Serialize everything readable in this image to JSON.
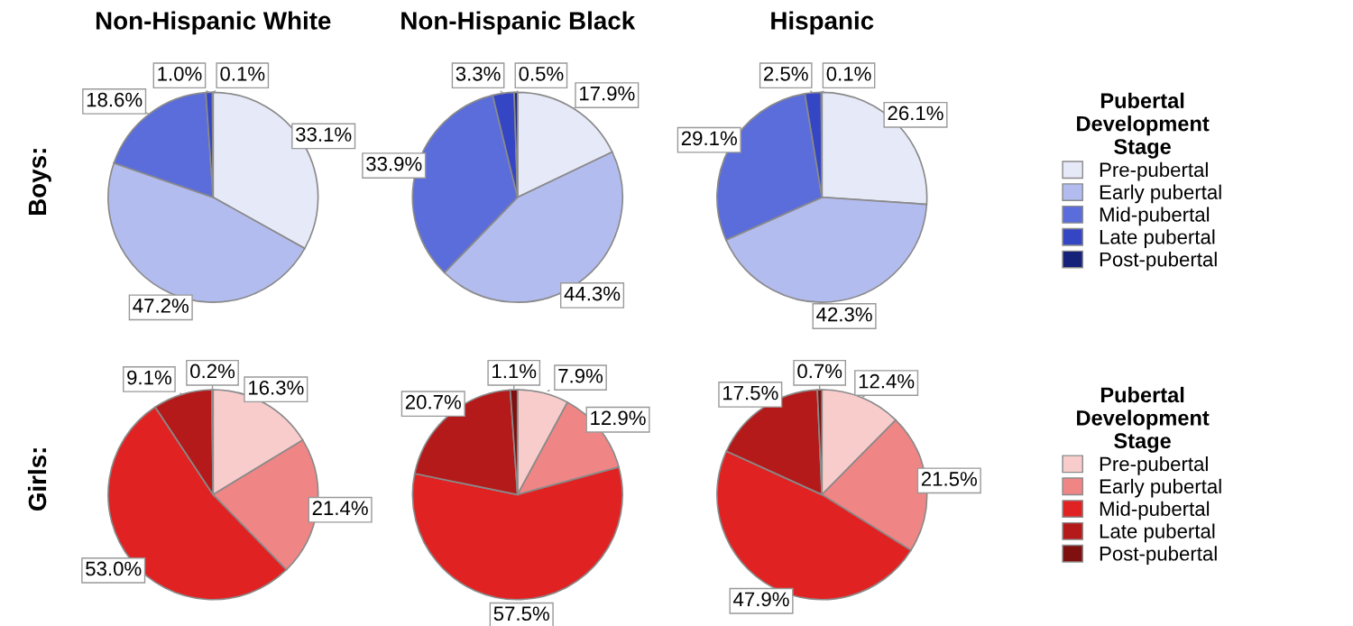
{
  "chart_data": [
    {
      "type": "pie",
      "title": "Non-Hispanic White",
      "ylabel": "Boys:",
      "categories": [
        "Pre-pubertal",
        "Early pubertal",
        "Mid-pubertal",
        "Late pubertal",
        "Post-pubertal"
      ],
      "values": [
        33.1,
        47.2,
        18.6,
        1.0,
        0.1
      ],
      "value_labels": [
        "33.1%",
        "47.2%",
        "18.6%",
        "1.0%",
        "0.1%"
      ],
      "colors": [
        "#e6e9f8",
        "#b3bcee",
        "#5b6ddb",
        "#3446c4",
        "#16217a"
      ],
      "legend_title": "Pubertal Development Stage",
      "legend": "right"
    },
    {
      "type": "pie",
      "title": "Non-Hispanic Black",
      "values": [
        17.9,
        44.3,
        33.9,
        3.3,
        0.5
      ],
      "value_labels": [
        "17.9%",
        "44.3%",
        "33.9%",
        "3.3%",
        "0.5%"
      ],
      "colors": [
        "#e6e9f8",
        "#b3bcee",
        "#5b6ddb",
        "#3446c4",
        "#16217a"
      ]
    },
    {
      "type": "pie",
      "title": "Hispanic",
      "values": [
        26.1,
        42.3,
        29.1,
        2.5,
        0.1
      ],
      "value_labels": [
        "26.1%",
        "42.3%",
        "29.1%",
        "2.5%",
        "0.1%"
      ],
      "colors": [
        "#e6e9f8",
        "#b3bcee",
        "#5b6ddb",
        "#3446c4",
        "#16217a"
      ]
    },
    {
      "type": "pie",
      "ylabel": "Girls:",
      "categories": [
        "Pre-pubertal",
        "Early pubertal",
        "Mid-pubertal",
        "Late pubertal",
        "Post-pubertal"
      ],
      "values": [
        16.3,
        21.4,
        53.0,
        9.1,
        0.2
      ],
      "value_labels": [
        "16.3%",
        "21.4%",
        "53.0%",
        "9.1%",
        "0.2%"
      ],
      "colors": [
        "#f9cccc",
        "#f08585",
        "#e12222",
        "#b51a1a",
        "#7e1010"
      ],
      "legend_title": "Pubertal Development Stage",
      "legend": "right"
    },
    {
      "type": "pie",
      "values": [
        7.9,
        12.9,
        57.5,
        20.7,
        1.1
      ],
      "value_labels": [
        "7.9%",
        "12.9%",
        "57.5%",
        "20.7%",
        "1.1%"
      ],
      "colors": [
        "#f9cccc",
        "#f08585",
        "#e12222",
        "#b51a1a",
        "#7e1010"
      ]
    },
    {
      "type": "pie",
      "values": [
        12.4,
        21.5,
        47.9,
        17.5,
        0.7
      ],
      "value_labels": [
        "12.4%",
        "21.5%",
        "47.9%",
        "17.5%",
        "0.7%"
      ],
      "colors": [
        "#f9cccc",
        "#f08585",
        "#e12222",
        "#b51a1a",
        "#7e1010"
      ]
    }
  ]
}
